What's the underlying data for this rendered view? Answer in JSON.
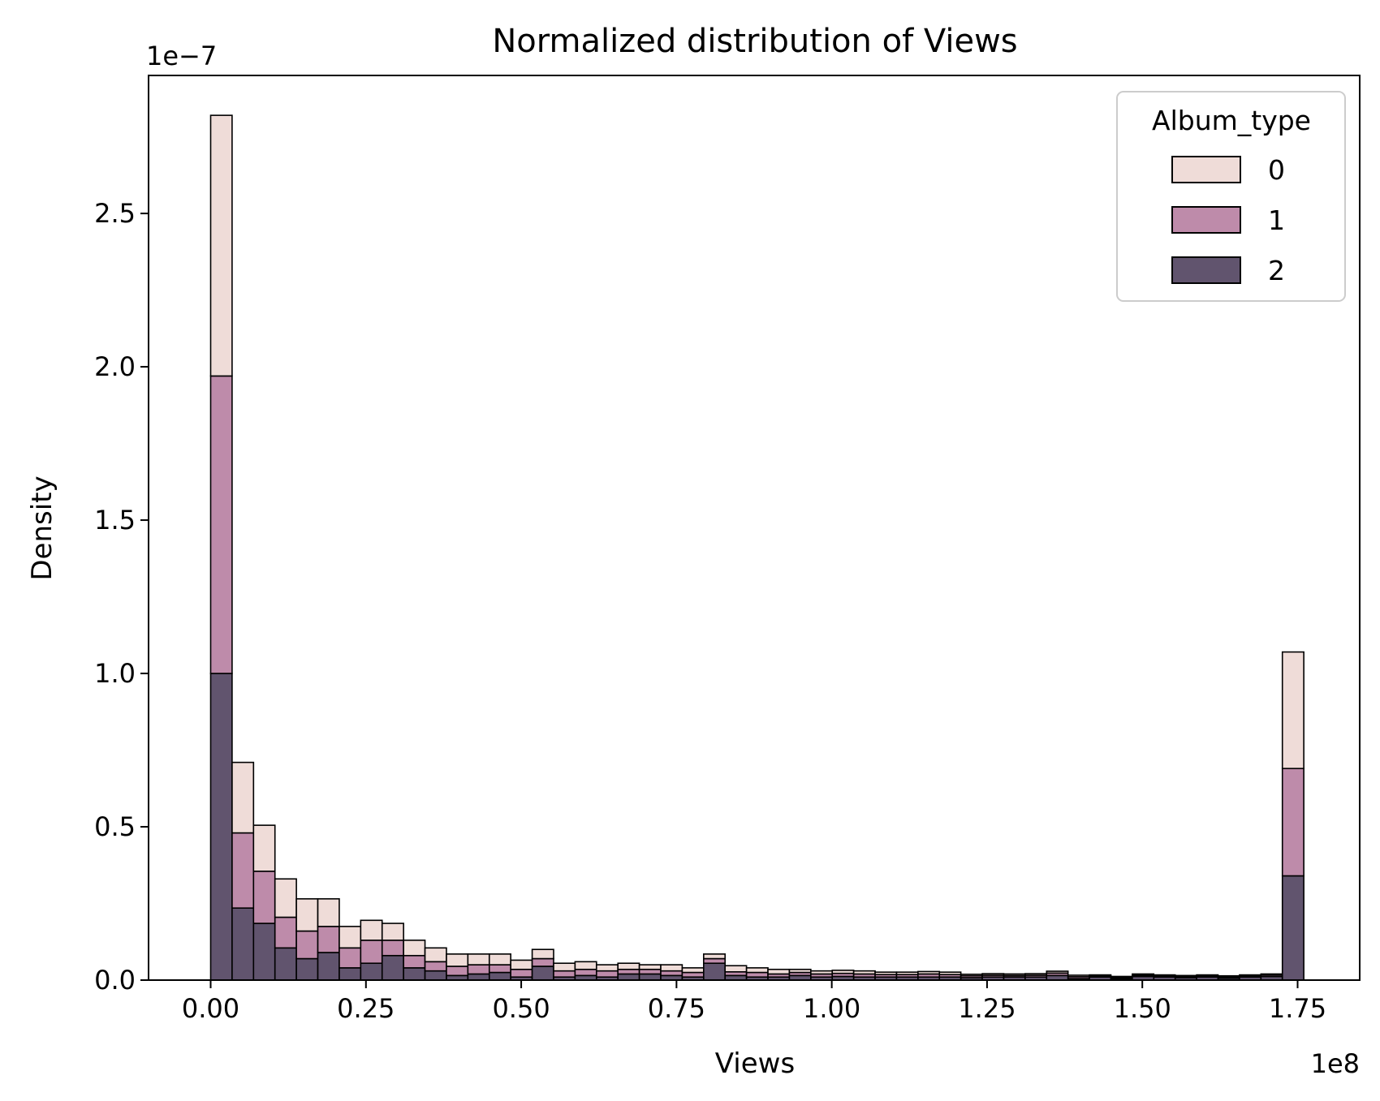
{
  "chart_data": {
    "type": "bar",
    "stacked": true,
    "title": "Normalized distribution of Views",
    "xlabel": "Views",
    "ylabel": "Density",
    "x_offset_text": "1e8",
    "y_offset_text": "1e−7",
    "xlim": [
      -0.1,
      1.85
    ],
    "ylim": [
      0,
      2.95
    ],
    "x_ticks": [
      0,
      0.25,
      0.5,
      0.75,
      1.0,
      1.25,
      1.5,
      1.75
    ],
    "x_tick_labels": [
      "0.00",
      "0.25",
      "0.50",
      "0.75",
      "1.00",
      "1.25",
      "1.50",
      "1.75"
    ],
    "y_ticks": [
      0,
      0.5,
      1.0,
      1.5,
      2.0,
      2.5
    ],
    "y_tick_labels": [
      "0.0",
      "0.5",
      "1.0",
      "1.5",
      "2.0",
      "2.5"
    ],
    "grid": false,
    "legend": {
      "title": "Album_type",
      "position": "top-right"
    },
    "bin_range": [
      0,
      1.76
    ],
    "series": [
      {
        "name": "0",
        "color": "#efdcd8",
        "values": [
          0.85,
          0.23,
          0.15,
          0.125,
          0.105,
          0.09,
          0.07,
          0.065,
          0.055,
          0.05,
          0.045,
          0.04,
          0.035,
          0.035,
          0.03,
          0.03,
          0.025,
          0.025,
          0.02,
          0.02,
          0.015,
          0.02,
          0.015,
          0.015,
          0.02,
          0.015,
          0.015,
          0.01,
          0.01,
          0.01,
          0.01,
          0.008,
          0.008,
          0.008,
          0.008,
          0.005,
          0.005,
          0.005,
          0.005,
          0.006,
          0.005,
          0.003,
          0.003,
          0.004,
          0.003,
          0.003,
          0.003,
          0.004,
          0.003,
          0.003,
          0.38
        ]
      },
      {
        "name": "1",
        "color": "#be8baa",
        "values": [
          0.97,
          0.245,
          0.17,
          0.1,
          0.09,
          0.085,
          0.065,
          0.075,
          0.05,
          0.04,
          0.03,
          0.03,
          0.03,
          0.025,
          0.025,
          0.025,
          0.02,
          0.02,
          0.02,
          0.015,
          0.015,
          0.015,
          0.015,
          0.015,
          0.012,
          0.015,
          0.01,
          0.01,
          0.01,
          0.01,
          0.01,
          0.008,
          0.008,
          0.01,
          0.008,
          0.006,
          0.006,
          0.005,
          0.006,
          0.008,
          0.006,
          0.004,
          0.004,
          0.004,
          0.004,
          0.004,
          0.004,
          0.004,
          0.004,
          0.005,
          0.35
        ]
      },
      {
        "name": "2",
        "color": "#61546e",
        "values": [
          1.0,
          0.235,
          0.185,
          0.105,
          0.07,
          0.09,
          0.04,
          0.055,
          0.08,
          0.04,
          0.03,
          0.015,
          0.02,
          0.025,
          0.01,
          0.045,
          0.01,
          0.015,
          0.01,
          0.02,
          0.02,
          0.015,
          0.01,
          0.055,
          0.015,
          0.01,
          0.01,
          0.015,
          0.01,
          0.012,
          0.01,
          0.01,
          0.01,
          0.01,
          0.01,
          0.008,
          0.01,
          0.01,
          0.01,
          0.015,
          0.005,
          0.01,
          0.005,
          0.012,
          0.01,
          0.008,
          0.01,
          0.006,
          0.01,
          0.012,
          0.34
        ]
      }
    ]
  }
}
